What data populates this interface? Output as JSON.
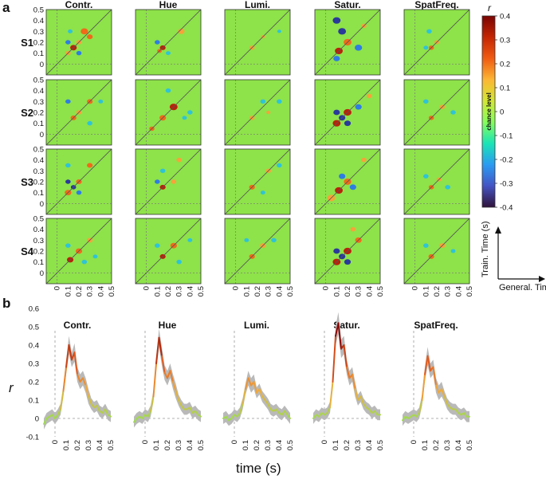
{
  "panels": {
    "a": "a",
    "b": "b"
  },
  "colormap": {
    "stops": [
      "#30123b",
      "#4454c4",
      "#2b9bf2",
      "#1ae4b6",
      "#86fe5c",
      "#d4e735",
      "#fcb634",
      "#f05b12",
      "#c42503",
      "#7a0403"
    ]
  },
  "heatmap_colors": {
    "background": "#8ee24a",
    "strong_positive": "#b8230a",
    "positive": "#f06a1a",
    "weak_positive": "#f6a33a",
    "weak_negative": "#2fc3d6",
    "negative": "#2f7de0",
    "strong_negative": "#2a3a9a"
  },
  "timecourse_colors": {
    "sem_band": "#b9b9b9",
    "zero_line": "#999999"
  },
  "chart_data": [
    {
      "type": "heatmap",
      "columns": [
        "Contr.",
        "Hue",
        "Lumi.",
        "Satur.",
        "SpatFreq."
      ],
      "rows": [
        "S1",
        "S2",
        "S3",
        "S4"
      ],
      "x_ticks": [
        "0",
        "0.1",
        "0.2",
        "0.3",
        "0.4",
        "0.5"
      ],
      "y_ticks": [
        "0.5",
        "0.4",
        "0.3",
        "0.2",
        "0.1",
        "0"
      ],
      "xlim": [
        -0.1,
        0.5
      ],
      "ylim": [
        -0.1,
        0.5
      ],
      "colorbar": {
        "label": "r",
        "center_label": "chance level",
        "ticks": [
          "0.4",
          "0.3",
          "0.2",
          "0.1",
          "0",
          "-0.1",
          "-0.2",
          "-0.3",
          "-0.4"
        ],
        "range": [
          -0.4,
          0.4
        ]
      },
      "axis_key": {
        "y": "Train. Time (s)",
        "x": "General. Time (s)"
      },
      "blobs": [
        [
          [
            [
              0.15,
              0.15,
              0.025,
              0.35
            ],
            [
              0.1,
              0.1,
              0.02,
              0.15
            ],
            [
              0.2,
              0.2,
              0.02,
              0.15
            ],
            [
              0.25,
              0.3,
              0.028,
              0.3
            ],
            [
              0.3,
              0.25,
              0.022,
              0.2
            ],
            [
              0.1,
              0.2,
              0.02,
              -0.2
            ],
            [
              0.2,
              0.1,
              0.02,
              -0.18
            ],
            [
              0.12,
              0.3,
              0.018,
              -0.15
            ]
          ],
          [
            [
              0.15,
              0.15,
              0.022,
              0.38
            ],
            [
              0.12,
              0.12,
              0.018,
              0.25
            ],
            [
              0.32,
              0.3,
              0.025,
              0.18
            ],
            [
              0.1,
              0.2,
              0.02,
              -0.18
            ],
            [
              0.2,
              0.1,
              0.018,
              -0.15
            ]
          ],
          [
            [
              0.15,
              0.15,
              0.02,
              0.18
            ],
            [
              0.25,
              0.25,
              0.015,
              0.08
            ],
            [
              0.4,
              0.3,
              0.015,
              -0.1
            ]
          ],
          [
            [
              0.12,
              0.12,
              0.03,
              0.38
            ],
            [
              0.2,
              0.2,
              0.03,
              0.3
            ],
            [
              0.15,
              0.3,
              0.03,
              -0.35
            ],
            [
              0.1,
              0.4,
              0.03,
              -0.28
            ],
            [
              0.3,
              0.15,
              0.028,
              -0.25
            ],
            [
              0.1,
              0.05,
              0.025,
              -0.22
            ],
            [
              0.35,
              0.35,
              0.02,
              0.15
            ]
          ],
          [
            [
              0.15,
              0.15,
              0.02,
              0.3
            ],
            [
              0.2,
              0.2,
              0.018,
              0.15
            ],
            [
              0.13,
              0.3,
              0.02,
              -0.15
            ],
            [
              0.1,
              0.15,
              0.018,
              -0.12
            ]
          ]
        ],
        [
          [
            [
              0.15,
              0.15,
              0.022,
              0.28
            ],
            [
              0.2,
              0.2,
              0.02,
              0.18
            ],
            [
              0.3,
              0.3,
              0.022,
              0.2
            ],
            [
              0.1,
              0.3,
              0.02,
              -0.18
            ],
            [
              0.3,
              0.1,
              0.02,
              -0.15
            ],
            [
              0.4,
              0.3,
              0.018,
              -0.12
            ]
          ],
          [
            [
              0.15,
              0.15,
              0.025,
              0.3
            ],
            [
              0.25,
              0.25,
              0.03,
              0.32
            ],
            [
              0.05,
              0.05,
              0.02,
              0.2
            ],
            [
              0.2,
              0.4,
              0.02,
              -0.15
            ],
            [
              0.4,
              0.2,
              0.02,
              -0.15
            ],
            [
              0.35,
              0.15,
              0.018,
              -0.12
            ]
          ],
          [
            [
              0.15,
              0.15,
              0.02,
              0.15
            ],
            [
              0.25,
              0.3,
              0.02,
              -0.12
            ],
            [
              0.4,
              0.3,
              0.02,
              -0.12
            ],
            [
              0.3,
              0.2,
              0.015,
              0.1
            ]
          ],
          [
            [
              0.1,
              0.1,
              0.03,
              0.38
            ],
            [
              0.2,
              0.2,
              0.03,
              0.38
            ],
            [
              0.15,
              0.15,
              0.025,
              -0.3
            ],
            [
              0.1,
              0.2,
              0.025,
              -0.3
            ],
            [
              0.2,
              0.1,
              0.025,
              -0.3
            ],
            [
              0.3,
              0.25,
              0.025,
              -0.2
            ],
            [
              0.4,
              0.35,
              0.02,
              0.15
            ]
          ],
          [
            [
              0.15,
              0.15,
              0.02,
              0.28
            ],
            [
              0.25,
              0.25,
              0.02,
              0.18
            ],
            [
              0.35,
              0.2,
              0.02,
              -0.12
            ],
            [
              0.1,
              0.3,
              0.02,
              -0.1
            ]
          ]
        ],
        [
          [
            [
              0.1,
              0.1,
              0.025,
              0.3
            ],
            [
              0.2,
              0.2,
              0.022,
              0.3
            ],
            [
              0.15,
              0.15,
              0.02,
              -0.3
            ],
            [
              0.1,
              0.2,
              0.02,
              -0.28
            ],
            [
              0.2,
              0.1,
              0.02,
              -0.25
            ],
            [
              0.3,
              0.35,
              0.022,
              0.25
            ],
            [
              0.1,
              0.35,
              0.02,
              -0.15
            ]
          ],
          [
            [
              0.15,
              0.15,
              0.022,
              0.35
            ],
            [
              0.25,
              0.2,
              0.02,
              0.15
            ],
            [
              0.1,
              0.2,
              0.02,
              -0.18
            ],
            [
              0.15,
              0.3,
              0.02,
              -0.15
            ],
            [
              0.3,
              0.4,
              0.02,
              0.15
            ]
          ],
          [
            [
              0.15,
              0.15,
              0.022,
              0.25
            ],
            [
              0.3,
              0.3,
              0.02,
              0.12
            ],
            [
              0.4,
              0.35,
              0.02,
              -0.12
            ],
            [
              0.25,
              0.1,
              0.018,
              -0.1
            ]
          ],
          [
            [
              0.12,
              0.12,
              0.03,
              0.35
            ],
            [
              0.2,
              0.2,
              0.028,
              0.3
            ],
            [
              0.05,
              0.05,
              0.03,
              0.18
            ],
            [
              0.15,
              0.25,
              0.025,
              -0.25
            ],
            [
              0.25,
              0.15,
              0.025,
              -0.22
            ],
            [
              0.35,
              0.4,
              0.02,
              0.12
            ]
          ],
          [
            [
              0.15,
              0.15,
              0.02,
              0.3
            ],
            [
              0.22,
              0.22,
              0.018,
              0.15
            ],
            [
              0.1,
              0.25,
              0.02,
              -0.15
            ],
            [
              0.3,
              0.15,
              0.02,
              -0.12
            ]
          ]
        ],
        [
          [
            [
              0.12,
              0.12,
              0.025,
              0.35
            ],
            [
              0.2,
              0.2,
              0.025,
              0.25
            ],
            [
              0.3,
              0.3,
              0.022,
              0.18
            ],
            [
              0.1,
              0.25,
              0.02,
              -0.15
            ],
            [
              0.25,
              0.1,
              0.02,
              -0.15
            ],
            [
              0.35,
              0.15,
              0.018,
              -0.12
            ]
          ],
          [
            [
              0.15,
              0.15,
              0.022,
              0.32
            ],
            [
              0.25,
              0.25,
              0.025,
              0.25
            ],
            [
              0.1,
              0.25,
              0.02,
              -0.15
            ],
            [
              0.3,
              0.1,
              0.02,
              -0.15
            ],
            [
              0.4,
              0.3,
              0.018,
              -0.12
            ]
          ],
          [
            [
              0.15,
              0.15,
              0.022,
              0.22
            ],
            [
              0.25,
              0.25,
              0.022,
              0.18
            ],
            [
              0.35,
              0.3,
              0.02,
              -0.12
            ],
            [
              0.1,
              0.3,
              0.018,
              -0.1
            ]
          ],
          [
            [
              0.1,
              0.1,
              0.03,
              0.4
            ],
            [
              0.2,
              0.2,
              0.03,
              0.38
            ],
            [
              0.15,
              0.15,
              0.025,
              -0.32
            ],
            [
              0.1,
              0.2,
              0.025,
              -0.3
            ],
            [
              0.2,
              0.1,
              0.025,
              -0.28
            ],
            [
              0.3,
              0.3,
              0.025,
              0.25
            ],
            [
              0.25,
              0.4,
              0.02,
              0.15
            ]
          ],
          [
            [
              0.15,
              0.15,
              0.022,
              0.28
            ],
            [
              0.25,
              0.25,
              0.022,
              0.18
            ],
            [
              0.1,
              0.25,
              0.02,
              -0.15
            ],
            [
              0.35,
              0.2,
              0.018,
              -0.12
            ]
          ]
        ]
      ]
    },
    {
      "type": "line",
      "titles": [
        "Contr.",
        "Hue",
        "Lumi.",
        "Satur.",
        "SpatFreq."
      ],
      "ylabel": "r",
      "xlabel": "time (s)",
      "y_ticks": [
        "0.6",
        "0.5",
        "0.4",
        "0.3",
        "0.2",
        "0.1",
        "0",
        "-0.1"
      ],
      "x_ticks": [
        "0",
        "0.1",
        "0.2",
        "0.3",
        "0.4",
        "0.5"
      ],
      "ylim": [
        -0.1,
        0.6
      ],
      "xlim": [
        -0.1,
        0.5
      ],
      "x": [
        -0.1,
        -0.075,
        -0.05,
        -0.025,
        0,
        0.025,
        0.05,
        0.075,
        0.1,
        0.125,
        0.15,
        0.175,
        0.2,
        0.225,
        0.25,
        0.275,
        0.3,
        0.325,
        0.35,
        0.375,
        0.4,
        0.425,
        0.45,
        0.475,
        0.5
      ],
      "series": [
        {
          "values": [
            -0.03,
            0.0,
            0.01,
            0.02,
            0.0,
            0.02,
            0.05,
            0.15,
            0.28,
            0.4,
            0.32,
            0.36,
            0.24,
            0.2,
            0.22,
            0.18,
            0.12,
            0.08,
            0.06,
            0.07,
            0.04,
            0.03,
            0.05,
            0.02,
            0.01
          ],
          "sem": [
            0.03,
            0.03,
            0.03,
            0.03,
            0.03,
            0.03,
            0.03,
            0.03,
            0.04,
            0.05,
            0.04,
            0.05,
            0.04,
            0.04,
            0.04,
            0.04,
            0.04,
            0.03,
            0.03,
            0.03,
            0.03,
            0.03,
            0.03,
            0.03,
            0.03
          ]
        },
        {
          "values": [
            -0.02,
            0.0,
            0.01,
            0.0,
            0.02,
            0.01,
            0.04,
            0.12,
            0.3,
            0.44,
            0.34,
            0.25,
            0.22,
            0.26,
            0.2,
            0.15,
            0.1,
            0.07,
            0.05,
            0.05,
            0.06,
            0.03,
            0.04,
            0.02,
            0.01
          ],
          "sem": [
            0.03,
            0.03,
            0.03,
            0.03,
            0.03,
            0.03,
            0.03,
            0.03,
            0.04,
            0.05,
            0.05,
            0.04,
            0.04,
            0.04,
            0.04,
            0.04,
            0.03,
            0.03,
            0.03,
            0.03,
            0.03,
            0.03,
            0.03,
            0.03,
            0.03
          ]
        },
        {
          "values": [
            0.0,
            0.01,
            -0.01,
            0.0,
            0.02,
            0.01,
            0.03,
            0.08,
            0.16,
            0.22,
            0.18,
            0.2,
            0.14,
            0.16,
            0.12,
            0.1,
            0.08,
            0.05,
            0.04,
            0.05,
            0.03,
            0.02,
            0.04,
            0.02,
            0.0
          ],
          "sem": [
            0.03,
            0.03,
            0.03,
            0.03,
            0.03,
            0.03,
            0.03,
            0.03,
            0.03,
            0.04,
            0.04,
            0.04,
            0.03,
            0.03,
            0.03,
            0.03,
            0.03,
            0.03,
            0.03,
            0.03,
            0.03,
            0.03,
            0.03,
            0.03,
            0.03
          ]
        },
        {
          "values": [
            0.0,
            0.02,
            0.01,
            0.03,
            0.02,
            0.03,
            0.06,
            0.2,
            0.45,
            0.52,
            0.38,
            0.4,
            0.28,
            0.22,
            0.24,
            0.16,
            0.1,
            0.12,
            0.08,
            0.06,
            0.05,
            0.03,
            0.04,
            0.02,
            0.02
          ],
          "sem": [
            0.03,
            0.03,
            0.03,
            0.03,
            0.03,
            0.03,
            0.03,
            0.03,
            0.05,
            0.06,
            0.05,
            0.05,
            0.04,
            0.04,
            0.04,
            0.04,
            0.03,
            0.03,
            0.03,
            0.03,
            0.03,
            0.03,
            0.03,
            0.03,
            0.03
          ]
        },
        {
          "values": [
            -0.01,
            0.01,
            0.0,
            0.01,
            0.02,
            0.01,
            0.03,
            0.1,
            0.24,
            0.34,
            0.26,
            0.28,
            0.18,
            0.14,
            0.16,
            0.12,
            0.08,
            0.06,
            0.05,
            0.05,
            0.03,
            0.02,
            0.03,
            0.01,
            0.01
          ],
          "sem": [
            0.03,
            0.03,
            0.03,
            0.03,
            0.03,
            0.03,
            0.03,
            0.03,
            0.04,
            0.05,
            0.04,
            0.04,
            0.04,
            0.04,
            0.04,
            0.03,
            0.03,
            0.03,
            0.03,
            0.03,
            0.03,
            0.03,
            0.03,
            0.03,
            0.03
          ]
        }
      ]
    }
  ]
}
